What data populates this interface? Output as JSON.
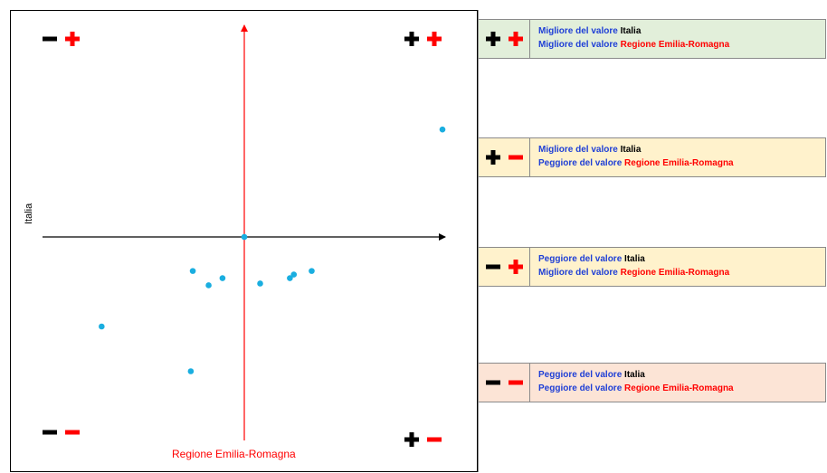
{
  "chart_data": {
    "type": "scatter",
    "xlabel": "Regione Emilia-Romagna",
    "ylabel": "Italia",
    "xlim": [
      -1,
      1
    ],
    "ylim": [
      -1,
      1
    ],
    "points": [
      {
        "x": 0.0,
        "y": 0.0
      },
      {
        "x": 1.0,
        "y": 0.6
      },
      {
        "x": -0.26,
        "y": -0.19
      },
      {
        "x": -0.18,
        "y": -0.27
      },
      {
        "x": -0.11,
        "y": -0.23
      },
      {
        "x": 0.08,
        "y": -0.26
      },
      {
        "x": 0.23,
        "y": -0.23
      },
      {
        "x": 0.25,
        "y": -0.21
      },
      {
        "x": 0.34,
        "y": -0.19
      },
      {
        "x": -0.72,
        "y": -0.5
      },
      {
        "x": -0.27,
        "y": -0.75
      }
    ],
    "point_color": "#1aaee0",
    "axis_color_x": "#000000",
    "axis_color_y": "#ff0000"
  },
  "quadrant_symbols": {
    "top_left": {
      "italia": "minus",
      "regione": "plus"
    },
    "top_right": {
      "italia": "plus",
      "regione": "plus"
    },
    "bottom_left": {
      "italia": "minus",
      "regione": "minus"
    },
    "bottom_right": {
      "italia": "plus",
      "regione": "minus"
    }
  },
  "legend": [
    {
      "italia_sym": "plus",
      "regione_sym": "plus",
      "bg": "#e2efda",
      "line1_prefix": "Migliore del valore",
      "line1_subject": "Italia",
      "line2_prefix": "Migliore del valore",
      "line2_subject": "Regione Emilia-Romagna"
    },
    {
      "italia_sym": "plus",
      "regione_sym": "minus",
      "bg": "#fff2cc",
      "line1_prefix": "Migliore del valore",
      "line1_subject": "Italia",
      "line2_prefix": "Peggiore del valore",
      "line2_subject": "Regione Emilia-Romagna"
    },
    {
      "italia_sym": "minus",
      "regione_sym": "plus",
      "bg": "#fff2cc",
      "line1_prefix": "Peggiore del valore",
      "line1_subject": "Italia",
      "line2_prefix": "Migliore del valore",
      "line2_subject": "Regione Emilia-Romagna"
    },
    {
      "italia_sym": "minus",
      "regione_sym": "minus",
      "bg": "#fce4d6",
      "line1_prefix": "Peggiore del valore",
      "line1_subject": "Italia",
      "line2_prefix": "Peggiore del valore",
      "line2_subject": "Regione Emilia-Romagna"
    }
  ]
}
